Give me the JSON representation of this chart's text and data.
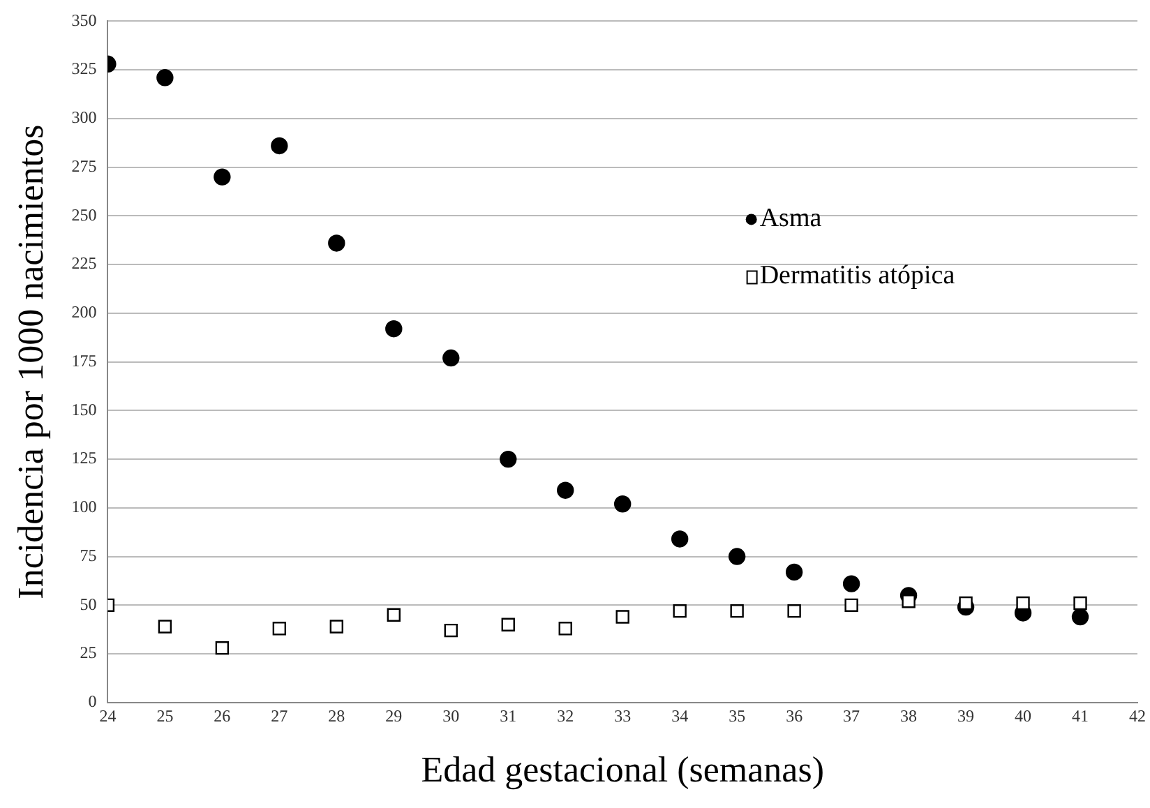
{
  "chart_data": {
    "type": "scatter",
    "xlabel": "Edad gestacional (semanas)",
    "ylabel": "Incidencia por 1000 nacimientos",
    "x": [
      24,
      25,
      26,
      27,
      28,
      29,
      30,
      31,
      32,
      33,
      34,
      35,
      36,
      37,
      38,
      39,
      40,
      41
    ],
    "xlim": [
      24,
      42
    ],
    "xticks": [
      24,
      25,
      26,
      27,
      28,
      29,
      30,
      31,
      32,
      33,
      34,
      35,
      36,
      37,
      38,
      39,
      40,
      41,
      42
    ],
    "ylim": [
      0,
      350
    ],
    "yticks": [
      0,
      25,
      50,
      75,
      100,
      125,
      150,
      175,
      200,
      225,
      250,
      275,
      300,
      325,
      350
    ],
    "grid": "y",
    "legend": "top right",
    "series": [
      {
        "name": "Asma",
        "color": "#000000",
        "marker": "circle",
        "values": [
          328,
          321,
          270,
          286,
          236,
          192,
          177,
          125,
          109,
          102,
          84,
          75,
          67,
          61,
          55,
          49,
          46,
          44
        ]
      },
      {
        "name": "Dermatitis atópica",
        "color": "#000000",
        "marker": "square",
        "values": [
          50,
          39,
          28,
          38,
          39,
          45,
          37,
          40,
          38,
          44,
          47,
          47,
          47,
          50,
          52,
          51,
          51,
          51
        ]
      }
    ]
  }
}
